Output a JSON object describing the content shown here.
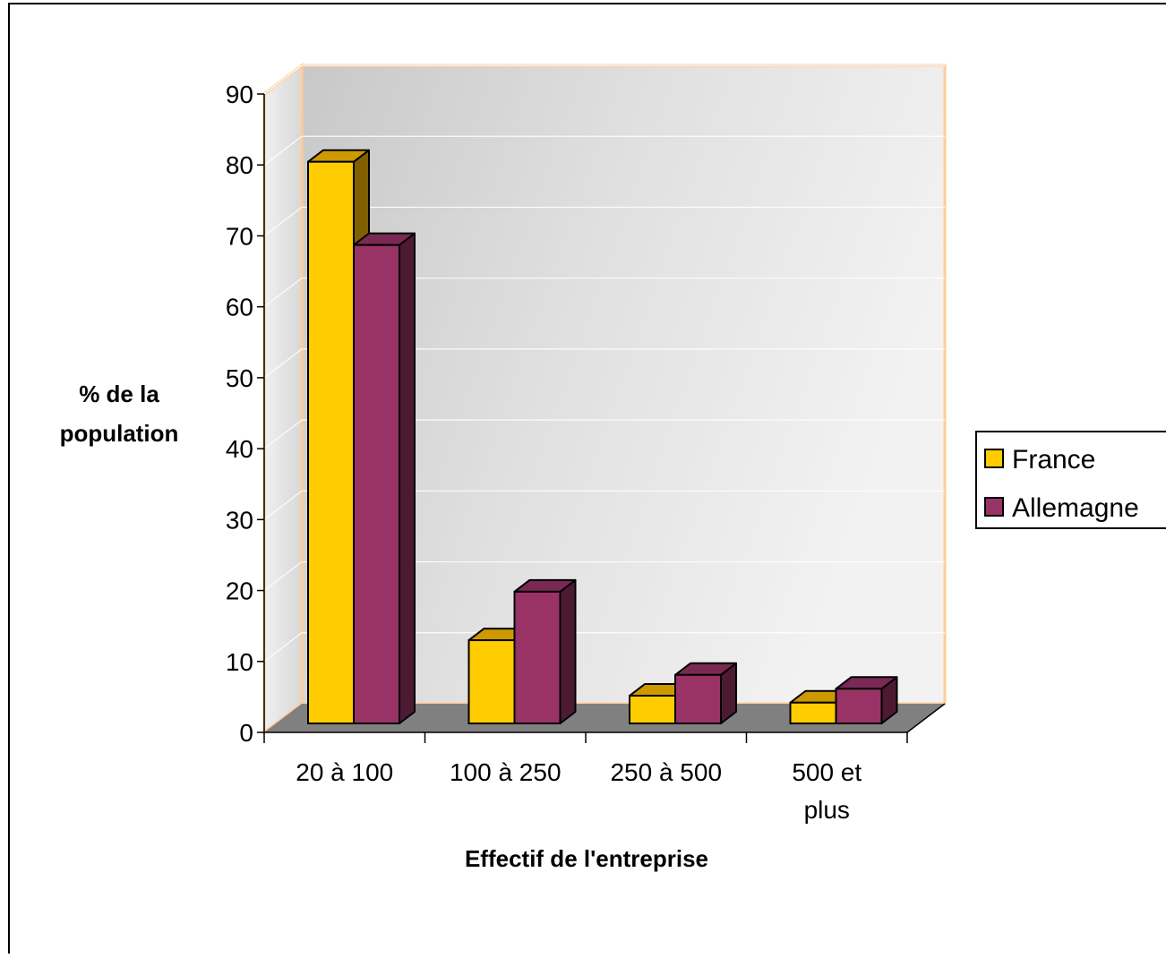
{
  "chart_data": {
    "type": "bar",
    "style": "3d-clustered-column",
    "title": "",
    "xlabel": "Effectif de l'entreprise",
    "ylabel_lines": [
      "% de la",
      "population"
    ],
    "ylim": [
      0,
      90
    ],
    "yticks": [
      0,
      10,
      20,
      30,
      40,
      50,
      60,
      70,
      80,
      90
    ],
    "ytick_labels": [
      "0",
      "10",
      "20",
      "30",
      "40",
      "50",
      "60",
      "70",
      "80",
      "90"
    ],
    "categories": [
      "20 à 100",
      "100 à 250",
      "250 à 500",
      "500 et plus"
    ],
    "category_label_lines": [
      [
        "20 à 100"
      ],
      [
        "100 à 250"
      ],
      [
        "250 à 500"
      ],
      [
        "500 et",
        "plus"
      ]
    ],
    "series": [
      {
        "name": "France",
        "values": [
          81,
          12,
          4,
          3
        ],
        "color": "#FFCC00",
        "top_color": "#CC9900",
        "side_color": "#806000"
      },
      {
        "name": "Allemagne",
        "values": [
          69,
          19,
          7,
          5
        ],
        "color": "#993366",
        "top_color": "#7A2952",
        "side_color": "#4D1A33"
      }
    ],
    "grid": true,
    "legend_position": "right",
    "floor_color": "#808080",
    "wall_border_color": "#FFCC99"
  }
}
